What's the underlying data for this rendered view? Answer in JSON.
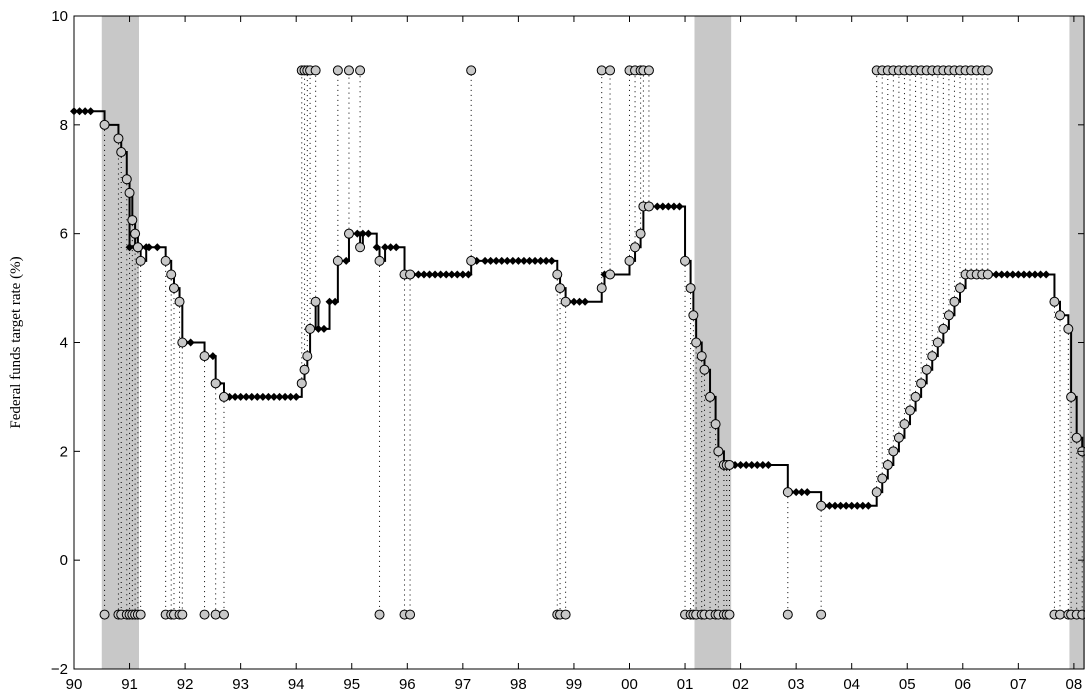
{
  "chart_data": {
    "type": "line",
    "title": "",
    "xlabel": "",
    "ylabel": "Federal funds target rate (%)",
    "xlim": [
      1990.0,
      2008.2
    ],
    "ylim": [
      -2,
      10
    ],
    "grid": false,
    "x_tick_labels": [
      "90",
      "91",
      "92",
      "93",
      "94",
      "95",
      "96",
      "97",
      "98",
      "99",
      "00",
      "01",
      "02",
      "03",
      "04",
      "05",
      "06",
      "07",
      "08"
    ],
    "y_tick_labels": [
      "−2",
      "0",
      "2",
      "4",
      "6",
      "8",
      "10"
    ],
    "recessions": [
      [
        1990.5,
        1991.17
      ],
      [
        2001.17,
        2001.83
      ],
      [
        2007.92,
        2008.2
      ]
    ],
    "series": [
      {
        "marker": "diamond",
        "x": [
          1990.0,
          1990.1,
          1990.2,
          1990.3,
          1990.55,
          1991.0,
          1991.1,
          1991.2,
          1991.3,
          1991.35,
          1991.5,
          1991.95,
          1992.0,
          1992.1,
          1992.5,
          1992.6,
          1992.7,
          1992.8,
          1992.9,
          1993.0,
          1993.1,
          1993.2,
          1993.3,
          1993.4,
          1993.5,
          1993.6,
          1993.7,
          1993.8,
          1993.9,
          1994.0,
          1994.4,
          1994.5,
          1994.6,
          1994.7,
          1994.9,
          1995.1,
          1995.2,
          1995.3,
          1995.45,
          1995.6,
          1995.7,
          1995.8,
          1996.1,
          1996.2,
          1996.3,
          1996.4,
          1996.5,
          1996.6,
          1996.7,
          1996.8,
          1996.9,
          1997.0,
          1997.1,
          1997.25,
          1997.4,
          1997.5,
          1997.6,
          1997.7,
          1997.8,
          1997.9,
          1998.0,
          1998.1,
          1998.2,
          1998.3,
          1998.4,
          1998.5,
          1998.6,
          1998.9,
          1999.0,
          1999.1,
          1999.2,
          1999.55,
          2000.5,
          2000.6,
          2000.7,
          2000.8,
          2000.9,
          2001.8,
          2001.9,
          2002.0,
          2002.1,
          2002.2,
          2002.3,
          2002.4,
          2002.5,
          2002.9,
          2003.0,
          2003.1,
          2003.2,
          2003.5,
          2003.6,
          2003.7,
          2003.8,
          2003.9,
          2004.0,
          2004.1,
          2004.2,
          2004.3,
          2006.5,
          2006.6,
          2006.7,
          2006.8,
          2006.9,
          2007.0,
          2007.1,
          2007.2,
          2007.3,
          2007.4,
          2007.5
        ],
        "y": [
          8.25,
          8.25,
          8.25,
          8.25,
          8.0,
          5.75,
          5.75,
          5.75,
          5.75,
          5.75,
          5.75,
          4.0,
          4.0,
          4.0,
          3.75,
          3.25,
          3.0,
          3.0,
          3.0,
          3.0,
          3.0,
          3.0,
          3.0,
          3.0,
          3.0,
          3.0,
          3.0,
          3.0,
          3.0,
          3.0,
          4.25,
          4.25,
          4.75,
          4.75,
          5.5,
          6.0,
          6.0,
          6.0,
          5.75,
          5.75,
          5.75,
          5.75,
          5.25,
          5.25,
          5.25,
          5.25,
          5.25,
          5.25,
          5.25,
          5.25,
          5.25,
          5.25,
          5.25,
          5.5,
          5.5,
          5.5,
          5.5,
          5.5,
          5.5,
          5.5,
          5.5,
          5.5,
          5.5,
          5.5,
          5.5,
          5.5,
          5.5,
          4.75,
          4.75,
          4.75,
          4.75,
          5.25,
          6.5,
          6.5,
          6.5,
          6.5,
          6.5,
          1.75,
          1.75,
          1.75,
          1.75,
          1.75,
          1.75,
          1.75,
          1.75,
          1.25,
          1.25,
          1.25,
          1.25,
          1.0,
          1.0,
          1.0,
          1.0,
          1.0,
          1.0,
          1.0,
          1.0,
          1.0,
          5.25,
          5.25,
          5.25,
          5.25,
          5.25,
          5.25,
          5.25,
          5.25,
          5.25,
          5.25,
          5.25
        ]
      },
      {
        "marker": "circle",
        "x": [
          1990.55,
          1990.8,
          1990.85,
          1990.95,
          1991.0,
          1991.05,
          1991.1,
          1991.15,
          1991.2,
          1991.65,
          1991.75,
          1991.8,
          1991.9,
          1991.95,
          1992.35,
          1992.55,
          1992.7,
          1994.1,
          1994.15,
          1994.2,
          1994.25,
          1994.35,
          1994.75,
          1994.95,
          1995.15,
          1995.5,
          1995.95,
          1996.05,
          1997.15,
          1998.7,
          1998.75,
          1998.85,
          1999.5,
          1999.65,
          2000.0,
          2000.1,
          2000.2,
          2000.25,
          2000.35,
          2001.0,
          2001.1,
          2001.15,
          2001.2,
          2001.3,
          2001.35,
          2001.45,
          2001.55,
          2001.6,
          2001.7,
          2001.75,
          2001.8,
          2002.85,
          2003.45,
          2004.45,
          2004.55,
          2004.65,
          2004.75,
          2004.85,
          2004.95,
          2005.05,
          2005.15,
          2005.25,
          2005.35,
          2005.45,
          2005.55,
          2005.65,
          2005.75,
          2005.85,
          2005.95,
          2006.05,
          2006.15,
          2006.25,
          2006.35,
          2006.45,
          2007.65,
          2007.75,
          2007.9,
          2007.95,
          2008.05,
          2008.15
        ],
        "y": [
          8.0,
          7.75,
          7.5,
          7.0,
          6.75,
          6.25,
          6.0,
          5.75,
          5.5,
          5.5,
          5.25,
          5.0,
          4.75,
          4.0,
          3.75,
          3.25,
          3.0,
          3.25,
          3.5,
          3.75,
          4.25,
          4.75,
          5.5,
          6.0,
          5.75,
          5.5,
          5.25,
          5.25,
          5.5,
          5.25,
          5.0,
          4.75,
          5.0,
          5.25,
          5.5,
          5.75,
          6.0,
          6.5,
          6.5,
          5.5,
          5.0,
          4.5,
          4.0,
          3.75,
          3.5,
          3.0,
          2.5,
          2.0,
          1.75,
          1.75,
          1.75,
          1.25,
          1.0,
          1.25,
          1.5,
          1.75,
          2.0,
          2.25,
          2.5,
          2.75,
          3.0,
          3.25,
          3.5,
          3.75,
          4.0,
          4.25,
          4.5,
          4.75,
          5.0,
          5.25,
          5.25,
          5.25,
          5.25,
          5.25,
          4.75,
          4.5,
          4.25,
          3.0,
          2.25,
          2.0
        ],
        "indicator_y": [
          -1,
          -1,
          -1,
          -1,
          -1,
          -1,
          -1,
          -1,
          -1,
          -1,
          -1,
          -1,
          -1,
          -1,
          -1,
          -1,
          -1,
          9,
          9,
          9,
          9,
          9,
          9,
          9,
          9,
          -1,
          -1,
          -1,
          9,
          -1,
          -1,
          -1,
          9,
          9,
          9,
          9,
          9,
          9,
          9,
          -1,
          -1,
          -1,
          -1,
          -1,
          -1,
          -1,
          -1,
          -1,
          -1,
          -1,
          -1,
          -1,
          -1,
          9,
          9,
          9,
          9,
          9,
          9,
          9,
          9,
          9,
          9,
          9,
          9,
          9,
          9,
          9,
          9,
          9,
          9,
          9,
          9,
          9,
          -1,
          -1,
          -1,
          -1,
          -1,
          -1
        ]
      }
    ],
    "colors": {
      "line": "#000000",
      "circle_fill": "#c8c8c8",
      "recession_fill": "#c8c8c8",
      "axis": "#000000"
    }
  }
}
